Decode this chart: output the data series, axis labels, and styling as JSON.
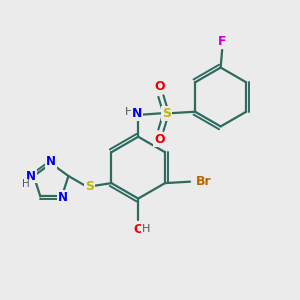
{
  "background_color": "#ebebeb",
  "bond_color": "#2d6b5e",
  "atom_colors": {
    "N": "#0000ee",
    "O": "#ee0000",
    "S": "#bbbb00",
    "Br": "#bb6600",
    "F": "#cc00cc",
    "H": "#555555",
    "C": "#2d6b5e"
  },
  "figsize": [
    3.0,
    3.0
  ],
  "dpi": 100
}
